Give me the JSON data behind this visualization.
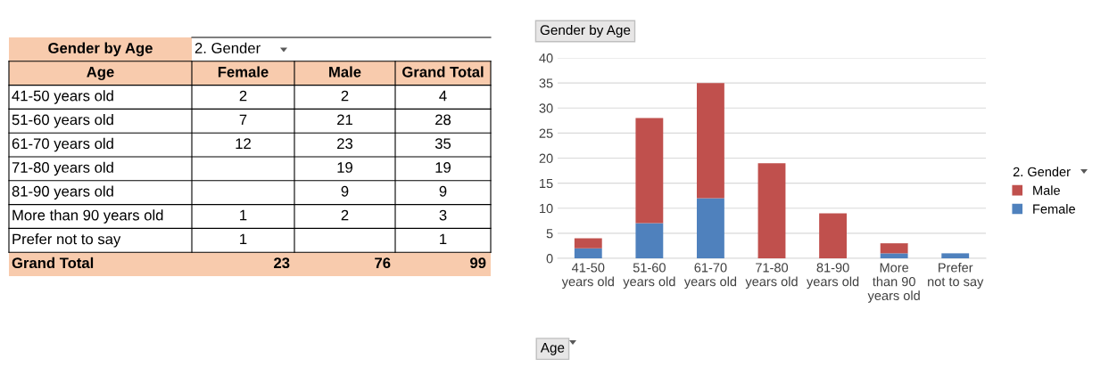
{
  "chart_data": [
    {
      "type": "other",
      "title": "Gender by Age",
      "legend_title": "2. Gender",
      "annotations": [
        "Age"
      ],
      "categories": [
        "41-50 years old",
        "51-60 years old",
        "61-70 years old",
        "71-80 years old",
        "81-90 years old",
        "More than 90 years old",
        "Prefer not to say",
        "Grand Total"
      ],
      "series": [
        {
          "name": "Female",
          "values": [
            2,
            7,
            12,
            null,
            null,
            1,
            1,
            23
          ]
        },
        {
          "name": "Male",
          "values": [
            2,
            21,
            23,
            19,
            9,
            2,
            null,
            76
          ]
        },
        {
          "name": "Grand Total",
          "values": [
            4,
            28,
            35,
            19,
            9,
            3,
            1,
            99
          ]
        }
      ],
      "data_labels": true
    },
    {
      "type": "bar",
      "title": "Gender by Age",
      "xlabel": "Age",
      "legend_title": "2. Gender",
      "categories": [
        "41-50\nyears old",
        "51-60\nyears old",
        "61-70\nyears old",
        "71-80\nyears old",
        "81-90\nyears old",
        "More\nthan 90\nyears old",
        "Prefer\nnot to say"
      ],
      "series": [
        {
          "name": "Female",
          "color": "#4f81bd",
          "values": [
            2,
            7,
            12,
            null,
            null,
            1,
            1
          ]
        },
        {
          "name": "Male",
          "color": "#c0504d",
          "values": [
            2,
            21,
            23,
            19,
            9,
            2,
            null
          ]
        }
      ],
      "stacked": true,
      "ylim": [
        0,
        40
      ],
      "yticks": [
        0,
        5,
        10,
        15,
        20,
        25,
        30,
        35,
        40
      ],
      "grid": "y",
      "legend": "right"
    }
  ]
}
